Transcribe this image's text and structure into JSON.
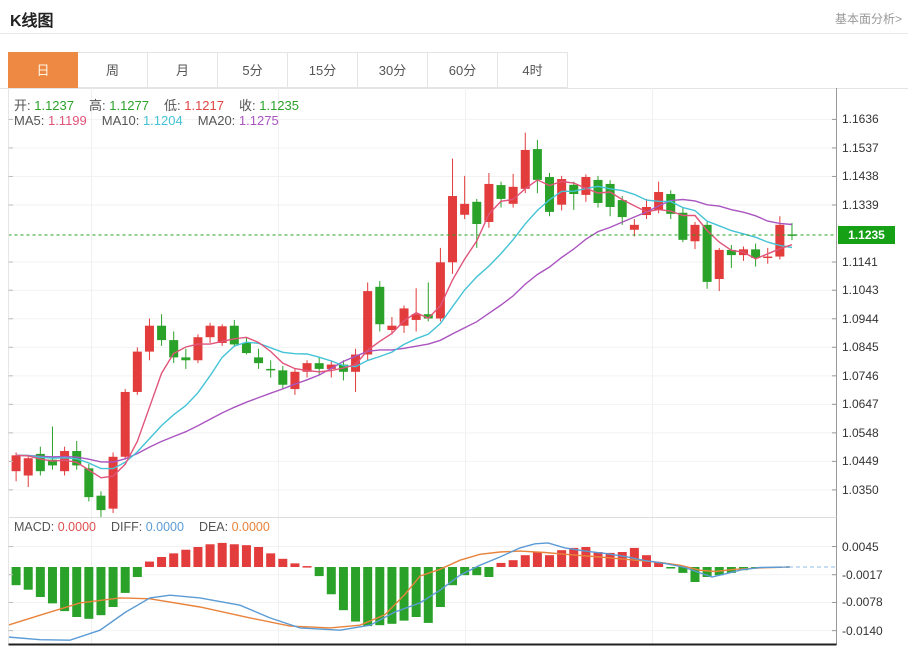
{
  "page": {
    "title": "K线图",
    "link_label": "基本面分析>"
  },
  "tabs": {
    "items": [
      "日",
      "周",
      "月",
      "5分",
      "15分",
      "30分",
      "60分",
      "4时"
    ],
    "active_index": 0
  },
  "legend": {
    "ohlc": [
      {
        "label": "开:",
        "value": "1.1237",
        "color": "#2aa22a"
      },
      {
        "label": "高:",
        "value": "1.1277",
        "color": "#2aa22a"
      },
      {
        "label": "低:",
        "value": "1.1217",
        "color": "#e04444"
      },
      {
        "label": "收:",
        "value": "1.1235",
        "color": "#2aa22a"
      }
    ],
    "ma": [
      {
        "label": "MA5:",
        "value": "1.1199",
        "color": "#e0547a"
      },
      {
        "label": "MA10:",
        "value": "1.1204",
        "color": "#44c3d6"
      },
      {
        "label": "MA20:",
        "value": "1.1275",
        "color": "#aa55c0"
      }
    ],
    "macd": [
      {
        "label": "MACD:",
        "value": "0.0000",
        "color": "#e04f4f"
      },
      {
        "label": "DIFF:",
        "value": "0.0000",
        "color": "#5b9bd5"
      },
      {
        "label": "DEA:",
        "value": "0.0000",
        "color": "#e8833c"
      }
    ]
  },
  "colors": {
    "up_candle": "#e23c3c",
    "down_candle": "#2aa22a",
    "ma5": "#e0547a",
    "ma10": "#44c3d6",
    "ma20": "#aa55c0",
    "diff_line": "#5b9bd5",
    "dea_line": "#e8833c",
    "price_line": "#21a121",
    "badge": "#16a016",
    "tab_active": "#ee8943"
  },
  "chart_data": {
    "type": "candlestick+macd",
    "title": "K线图 (daily K-line with MA5/MA10/MA20 and MACD)",
    "y_ticks": [
      1.1636,
      1.1537,
      1.1438,
      1.1339,
      1.1141,
      1.1043,
      1.0944,
      1.0845,
      1.0746,
      1.0647,
      1.0548,
      1.0449,
      1.035
    ],
    "current_price": 1.1235,
    "current_price_label": "1.1235",
    "price_range": [
      1.0256,
      1.1745
    ],
    "ma_periods": [
      5,
      10,
      20
    ],
    "grid": true,
    "candles_ohlc": [
      [
        1.0415,
        1.048,
        1.038,
        1.047
      ],
      [
        1.04,
        1.0465,
        1.036,
        1.046
      ],
      [
        1.0475,
        1.05,
        1.04,
        1.0415
      ],
      [
        1.0455,
        1.057,
        1.042,
        1.0435
      ],
      [
        1.0415,
        1.05,
        1.04,
        1.0485
      ],
      [
        1.0485,
        1.052,
        1.042,
        1.0435
      ],
      [
        1.0425,
        1.044,
        1.031,
        1.0325
      ],
      [
        1.033,
        1.0345,
        1.0255,
        1.028
      ],
      [
        1.0285,
        1.048,
        1.027,
        1.0465
      ],
      [
        1.0465,
        1.07,
        1.0455,
        1.069
      ],
      [
        1.069,
        1.0845,
        1.068,
        1.083
      ],
      [
        1.083,
        1.0945,
        1.08,
        1.092
      ],
      [
        1.092,
        1.096,
        1.085,
        1.087
      ],
      [
        1.087,
        1.09,
        1.079,
        1.081
      ],
      [
        1.081,
        1.084,
        1.077,
        1.08
      ],
      [
        1.08,
        1.089,
        1.079,
        1.088
      ],
      [
        1.088,
        1.093,
        1.086,
        1.092
      ],
      [
        1.086,
        1.0925,
        1.085,
        1.0918
      ],
      [
        1.092,
        1.094,
        1.085,
        1.0855
      ],
      [
        1.086,
        1.088,
        1.082,
        1.0825
      ],
      [
        1.081,
        1.084,
        1.077,
        1.079
      ],
      [
        1.077,
        1.08,
        1.074,
        1.0765
      ],
      [
        1.0765,
        1.078,
        1.07,
        1.0715
      ],
      [
        1.07,
        1.077,
        1.068,
        1.076
      ],
      [
        1.076,
        1.08,
        1.074,
        1.079
      ],
      [
        1.079,
        1.081,
        1.075,
        1.077
      ],
      [
        1.077,
        1.08,
        1.074,
        1.0785
      ],
      [
        1.0785,
        1.08,
        1.073,
        1.076
      ],
      [
        1.076,
        1.084,
        1.069,
        1.082
      ],
      [
        1.082,
        1.107,
        1.08,
        1.104
      ],
      [
        1.1055,
        1.1075,
        1.09,
        1.0925
      ],
      [
        1.0905,
        1.095,
        1.089,
        1.092
      ],
      [
        1.092,
        1.099,
        1.0895,
        1.098
      ],
      [
        1.094,
        1.105,
        1.09,
        1.096
      ],
      [
        1.096,
        1.107,
        1.0935,
        1.0945
      ],
      [
        1.0945,
        1.119,
        1.0935,
        1.114
      ],
      [
        1.114,
        1.15,
        1.11,
        1.137
      ],
      [
        1.1305,
        1.144,
        1.129,
        1.1343
      ],
      [
        1.135,
        1.136,
        1.119,
        1.1273
      ],
      [
        1.128,
        1.145,
        1.126,
        1.1412
      ],
      [
        1.1408,
        1.142,
        1.133,
        1.136
      ],
      [
        1.1343,
        1.1447,
        1.133,
        1.1402
      ],
      [
        1.1395,
        1.159,
        1.138,
        1.153
      ],
      [
        1.1533,
        1.1565,
        1.138,
        1.1426
      ],
      [
        1.1436,
        1.145,
        1.13,
        1.1315
      ],
      [
        1.134,
        1.144,
        1.132,
        1.1429
      ],
      [
        1.1409,
        1.142,
        1.1322,
        1.1377
      ],
      [
        1.1374,
        1.1445,
        1.135,
        1.1436
      ],
      [
        1.1426,
        1.144,
        1.133,
        1.1346
      ],
      [
        1.1412,
        1.1425,
        1.13,
        1.1332
      ],
      [
        1.1356,
        1.137,
        1.127,
        1.1297
      ],
      [
        1.1253,
        1.129,
        1.123,
        1.127
      ],
      [
        1.1304,
        1.136,
        1.129,
        1.1332
      ],
      [
        1.1322,
        1.142,
        1.131,
        1.1384
      ],
      [
        1.1377,
        1.139,
        1.129,
        1.1308
      ],
      [
        1.1312,
        1.133,
        1.121,
        1.1218
      ],
      [
        1.1213,
        1.128,
        1.1186,
        1.127
      ],
      [
        1.127,
        1.128,
        1.1048,
        1.1072
      ],
      [
        1.1082,
        1.119,
        1.104,
        1.1183
      ],
      [
        1.1183,
        1.12,
        1.112,
        1.1165
      ],
      [
        1.1165,
        1.1195,
        1.1145,
        1.1185
      ],
      [
        1.1185,
        1.1205,
        1.1125,
        1.1155
      ],
      [
        1.1155,
        1.119,
        1.1135,
        1.116
      ],
      [
        1.116,
        1.13,
        1.115,
        1.127
      ],
      [
        1.1237,
        1.1277,
        1.1217,
        1.1235
      ]
    ],
    "macd": {
      "y_ticks": [
        0.0045,
        -0.0017,
        -0.0078,
        -0.014
      ],
      "values": {
        "macd": 0.0,
        "diff": 0.0,
        "dea": 0.0
      },
      "hist": [
        -0.004,
        -0.005,
        -0.0066,
        -0.008,
        -0.0097,
        -0.011,
        -0.0114,
        -0.0106,
        -0.0088,
        -0.0057,
        -0.0022,
        0.0012,
        0.0022,
        0.003,
        0.0038,
        0.0044,
        0.005,
        0.0053,
        0.005,
        0.0048,
        0.0044,
        0.003,
        0.0018,
        0.0008,
        0.0002,
        -0.002,
        -0.006,
        -0.0095,
        -0.012,
        -0.013,
        -0.0128,
        -0.0125,
        -0.0118,
        -0.011,
        -0.0123,
        -0.0088,
        -0.004,
        -0.0018,
        -0.0018,
        -0.0022,
        0.0009,
        0.0015,
        0.0026,
        0.0033,
        0.0026,
        0.0037,
        0.0042,
        0.0044,
        0.0033,
        0.0031,
        0.0033,
        0.0042,
        0.0026,
        0.0011,
        -0.0002,
        -0.0013,
        -0.0033,
        -0.0022,
        -0.0018,
        -0.0013,
        -0.0007,
        -0.0002,
        0,
        0,
        0
      ],
      "diff_pts": [
        [
          8,
          -0.0154
        ],
        [
          40,
          -0.016
        ],
        [
          70,
          -0.0161
        ],
        [
          100,
          -0.0139
        ],
        [
          125,
          -0.01
        ],
        [
          150,
          -0.0068
        ],
        [
          170,
          -0.0062
        ],
        [
          200,
          -0.0068
        ],
        [
          240,
          -0.0084
        ],
        [
          270,
          -0.0112
        ],
        [
          300,
          -0.0134
        ],
        [
          340,
          -0.0139
        ],
        [
          370,
          -0.0128
        ],
        [
          395,
          -0.0099
        ],
        [
          420,
          -0.0079
        ],
        [
          440,
          -0.0051
        ],
        [
          460,
          -0.0018
        ],
        [
          480,
          0.0004
        ],
        [
          500,
          0.0022
        ],
        [
          520,
          0.0042
        ],
        [
          535,
          0.0051
        ],
        [
          548,
          0.0053
        ],
        [
          565,
          0.0042
        ],
        [
          585,
          0.0035
        ],
        [
          605,
          0.003
        ],
        [
          625,
          0.0023
        ],
        [
          645,
          0.0014
        ],
        [
          665,
          0.0008
        ],
        [
          685,
          -0.0001
        ],
        [
          700,
          -0.0013
        ],
        [
          712,
          -0.0022
        ],
        [
          727,
          -0.0014
        ],
        [
          742,
          -0.0006
        ],
        [
          760,
          -0.0001
        ],
        [
          790,
          0.0
        ]
      ],
      "dea_pts": [
        [
          8,
          -0.0128
        ],
        [
          40,
          -0.0106
        ],
        [
          80,
          -0.0079
        ],
        [
          120,
          -0.0068
        ],
        [
          150,
          -0.007
        ],
        [
          200,
          -0.0088
        ],
        [
          250,
          -0.0112
        ],
        [
          290,
          -0.013
        ],
        [
          330,
          -0.0134
        ],
        [
          360,
          -0.0128
        ],
        [
          385,
          -0.0105
        ],
        [
          405,
          -0.006
        ],
        [
          420,
          -0.002
        ],
        [
          440,
          -0.0005
        ],
        [
          460,
          0.0015
        ],
        [
          480,
          0.0028
        ],
        [
          500,
          0.0033
        ],
        [
          520,
          0.0035
        ],
        [
          545,
          0.0032
        ],
        [
          570,
          0.0027
        ],
        [
          600,
          0.0022
        ],
        [
          630,
          0.0016
        ],
        [
          660,
          0.001
        ],
        [
          680,
          0.0004
        ],
        [
          700,
          -0.0007
        ],
        [
          715,
          -0.001
        ],
        [
          735,
          -0.0005
        ],
        [
          760,
          -0.0002
        ],
        [
          790,
          0.0
        ]
      ]
    }
  }
}
